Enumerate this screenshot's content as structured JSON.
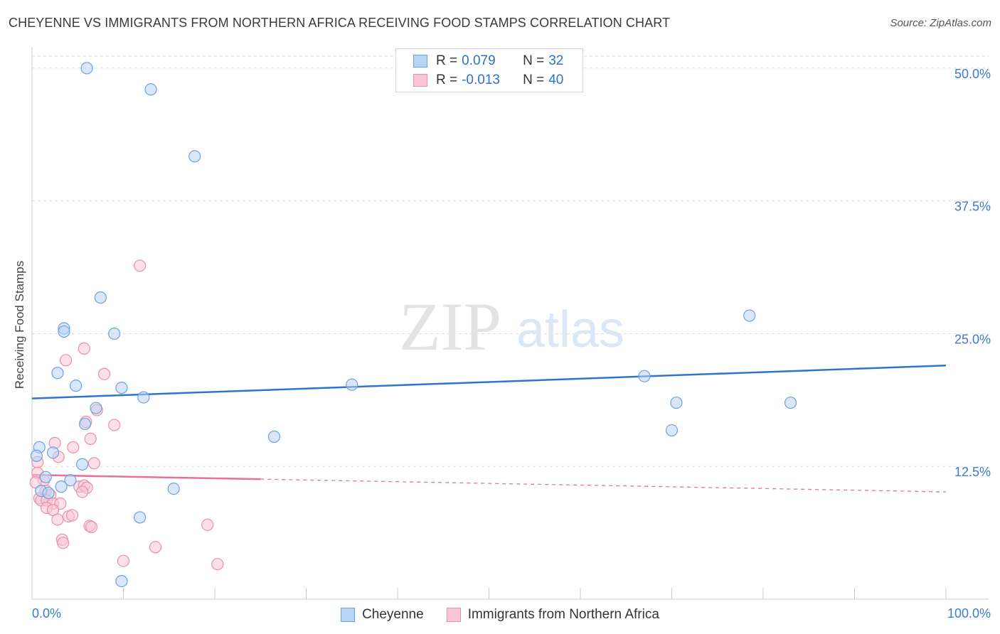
{
  "chart_data": {
    "type": "scatter",
    "title": "CHEYENNE VS IMMIGRANTS FROM NORTHERN AFRICA RECEIVING FOOD STAMPS CORRELATION CHART",
    "source": "Source: ZipAtlas.com",
    "ylabel": "Receiving Food Stamps",
    "xlabel": "",
    "xlim": [
      0,
      100
    ],
    "ylim": [
      0,
      52
    ],
    "x_tick_labels": [
      "0.0%",
      "100.0%"
    ],
    "y_ticks": [
      12.5,
      25.0,
      37.5,
      50.0
    ],
    "y_tick_labels": [
      "12.5%",
      "25.0%",
      "37.5%",
      "50.0%"
    ],
    "grid": true,
    "watermark": {
      "zip": "ZIP",
      "atlas": "atlas"
    },
    "legend_placement": "top-center",
    "colors": {
      "blue_fill": "#b8d3f5",
      "blue_edge": "#6fa1dc",
      "blue_line": "#2f74cf",
      "pink_fill": "#f8c6d5",
      "pink_edge": "#e990ad",
      "pink_line": "#e8709a",
      "tick_label": "#3d7ad0",
      "grid": "#dddddd",
      "axis": "#cccccc"
    },
    "stats": [
      {
        "r_label": "R =",
        "r_value": "0.079",
        "n_label": "N =",
        "n_value": "32"
      },
      {
        "r_label": "R =",
        "r_value": "-0.013",
        "n_label": "N =",
        "n_value": "40"
      }
    ],
    "series": [
      {
        "name": "Cheyenne",
        "trend": {
          "x": [
            0,
            100
          ],
          "y": [
            18.9,
            22.0
          ],
          "solid_to": 100
        },
        "points": [
          [
            6.0,
            50.0
          ],
          [
            13.0,
            48.0
          ],
          [
            17.8,
            41.7
          ],
          [
            7.5,
            28.4
          ],
          [
            35.0,
            20.2
          ],
          [
            3.5,
            25.5
          ],
          [
            3.5,
            25.2
          ],
          [
            9.0,
            25.0
          ],
          [
            2.8,
            21.3
          ],
          [
            4.8,
            20.1
          ],
          [
            9.8,
            19.9
          ],
          [
            12.2,
            19.0
          ],
          [
            7.0,
            18.0
          ],
          [
            5.8,
            16.5
          ],
          [
            26.5,
            15.3
          ],
          [
            0.8,
            14.3
          ],
          [
            0.5,
            13.5
          ],
          [
            2.3,
            13.8
          ],
          [
            5.5,
            12.7
          ],
          [
            1.5,
            11.5
          ],
          [
            4.2,
            11.2
          ],
          [
            3.2,
            10.6
          ],
          [
            1.0,
            10.2
          ],
          [
            1.8,
            10.0
          ],
          [
            15.5,
            10.4
          ],
          [
            11.8,
            7.7
          ],
          [
            9.8,
            1.7
          ],
          [
            67.0,
            21.0
          ],
          [
            70.5,
            18.5
          ],
          [
            78.5,
            26.7
          ],
          [
            83.0,
            18.5
          ],
          [
            70.0,
            15.9
          ]
        ]
      },
      {
        "name": "Immigrants from Northern Africa",
        "trend": {
          "x": [
            0,
            100
          ],
          "y": [
            11.7,
            10.1
          ],
          "solid_to": 25
        },
        "points": [
          [
            11.8,
            31.4
          ],
          [
            5.7,
            23.6
          ],
          [
            3.7,
            22.5
          ],
          [
            7.9,
            21.2
          ],
          [
            7.1,
            17.8
          ],
          [
            9.0,
            16.4
          ],
          [
            5.9,
            16.7
          ],
          [
            6.4,
            15.1
          ],
          [
            2.5,
            14.7
          ],
          [
            4.5,
            14.3
          ],
          [
            2.9,
            13.4
          ],
          [
            0.6,
            12.9
          ],
          [
            6.8,
            12.8
          ],
          [
            0.6,
            11.9
          ],
          [
            1.3,
            11.2
          ],
          [
            0.4,
            11.0
          ],
          [
            5.2,
            10.6
          ],
          [
            5.7,
            10.7
          ],
          [
            6.0,
            10.5
          ],
          [
            5.5,
            10.1
          ],
          [
            1.5,
            10.2
          ],
          [
            2.0,
            9.8
          ],
          [
            0.8,
            9.5
          ],
          [
            1.0,
            9.3
          ],
          [
            1.6,
            9.3
          ],
          [
            2.3,
            9.0
          ],
          [
            3.1,
            9.0
          ],
          [
            1.6,
            8.6
          ],
          [
            2.3,
            8.4
          ],
          [
            4.0,
            7.8
          ],
          [
            4.4,
            7.9
          ],
          [
            2.8,
            7.5
          ],
          [
            6.3,
            6.9
          ],
          [
            6.5,
            6.8
          ],
          [
            19.2,
            7.0
          ],
          [
            3.3,
            5.6
          ],
          [
            3.4,
            5.3
          ],
          [
            13.5,
            4.9
          ],
          [
            10.0,
            3.6
          ],
          [
            20.3,
            3.3
          ]
        ]
      }
    ]
  }
}
